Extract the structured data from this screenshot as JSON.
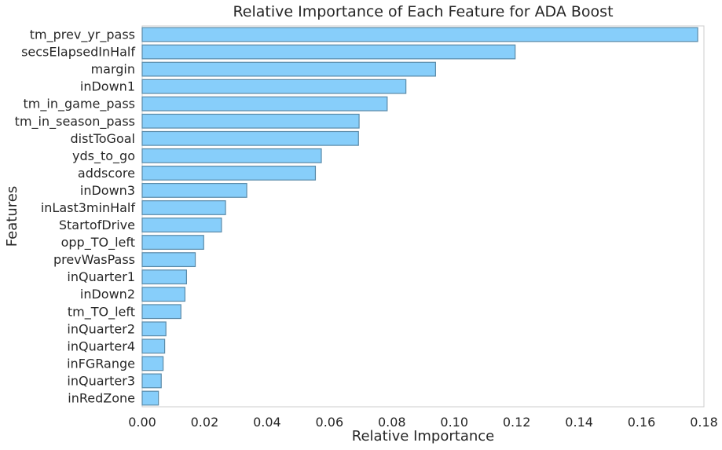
{
  "chart_data": {
    "type": "bar",
    "orientation": "horizontal",
    "title": "Relative Importance of Each Feature for ADA Boost",
    "xlabel": "Relative Importance",
    "ylabel": "Features",
    "xlim": [
      0.0,
      0.18
    ],
    "xticks": [
      "0.00",
      "0.02",
      "0.04",
      "0.06",
      "0.08",
      "0.10",
      "0.12",
      "0.14",
      "0.16",
      "0.18"
    ],
    "grid": false,
    "bar_color": "#87CEFA",
    "bar_edge_color": "#5a8aa8",
    "categories": [
      "tm_prev_yr_pass",
      "secsElapsedInHalf",
      "margin",
      "inDown1",
      "tm_in_game_pass",
      "tm_in_season_pass",
      "distToGoal",
      "yds_to_go",
      "addscore",
      "inDown3",
      "inLast3minHalf",
      "StartofDrive",
      "opp_TO_left",
      "prevWasPass",
      "inQuarter1",
      "inDown2",
      "tm_TO_left",
      "inQuarter2",
      "inQuarter4",
      "inFGRange",
      "inQuarter3",
      "inRedZone"
    ],
    "values": [
      0.178,
      0.1195,
      0.094,
      0.0845,
      0.0785,
      0.0695,
      0.0693,
      0.0574,
      0.0555,
      0.0335,
      0.0267,
      0.0254,
      0.0197,
      0.017,
      0.0142,
      0.0137,
      0.0124,
      0.0076,
      0.0072,
      0.0067,
      0.0061,
      0.0052
    ]
  }
}
